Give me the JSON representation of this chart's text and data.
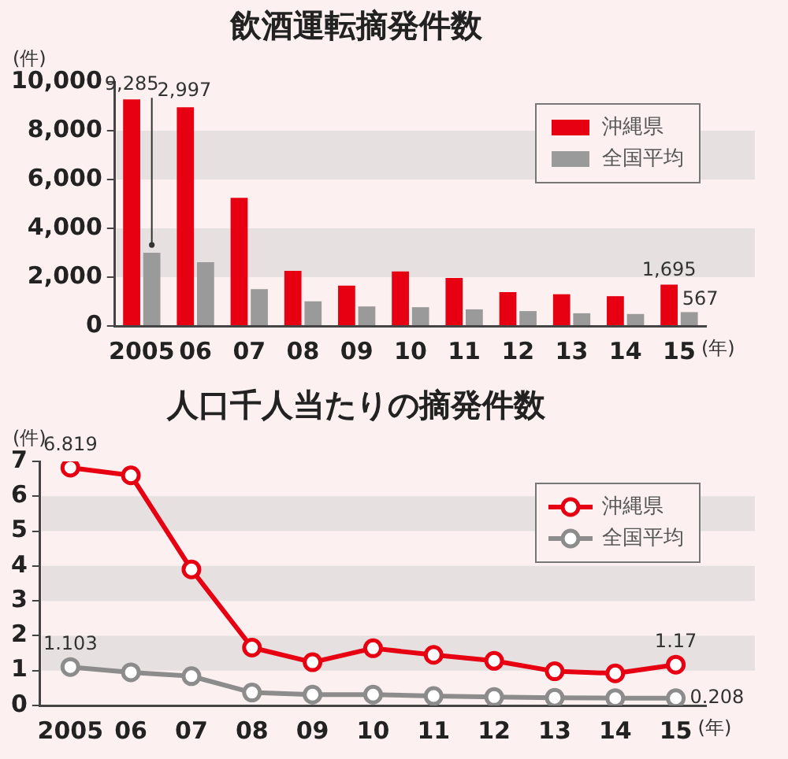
{
  "chart_data": [
    {
      "type": "bar",
      "title": "飲酒運転摘発件数",
      "xlabel": "(年)",
      "ylabel": "(件)",
      "categories": [
        "2005",
        "06",
        "07",
        "08",
        "09",
        "10",
        "11",
        "12",
        "13",
        "14",
        "15"
      ],
      "series": [
        {
          "name": "沖縄県",
          "color": "#e60012",
          "values": [
            9285,
            8960,
            5250,
            2260,
            1650,
            2230,
            1970,
            1390,
            1300,
            1220,
            1695
          ],
          "value_labels": [
            "9,285",
            null,
            null,
            null,
            null,
            null,
            null,
            null,
            null,
            null,
            "1,695"
          ]
        },
        {
          "name": "全国平均",
          "color": "#9a9a9a",
          "values": [
            2997,
            2610,
            1510,
            1010,
            800,
            770,
            680,
            610,
            520,
            490,
            567
          ],
          "value_labels": [
            "2,997",
            null,
            null,
            null,
            null,
            null,
            null,
            null,
            null,
            null,
            "567"
          ]
        }
      ],
      "ylim": [
        0,
        10000
      ],
      "yticks": [
        0,
        {
          "value": 2000,
          "label": "2,000"
        },
        {
          "value": 4000,
          "label": "4,000"
        },
        {
          "value": 6000,
          "label": "6,000"
        },
        {
          "value": 8000,
          "label": "8,000"
        },
        {
          "value": 10000,
          "label": "10,000"
        }
      ],
      "bands": [
        {
          "axis": "y",
          "from": 2000,
          "to": 4000,
          "color": "#e6e0e0"
        },
        {
          "axis": "y",
          "from": 6000,
          "to": 8000,
          "color": "#e6e0e0"
        }
      ],
      "legend": "top right"
    },
    {
      "type": "line",
      "title": "人口千人当たりの摘発件数",
      "xlabel": "(年)",
      "ylabel": "(件)",
      "categories": [
        "2005",
        "06",
        "07",
        "08",
        "09",
        "10",
        "11",
        "12",
        "13",
        "14",
        "15"
      ],
      "series": [
        {
          "name": "沖縄県",
          "color": "#e60012",
          "values": [
            6.819,
            6.6,
            3.9,
            1.66,
            1.24,
            1.64,
            1.45,
            1.28,
            0.98,
            0.92,
            1.17
          ],
          "value_labels": [
            "6.819",
            null,
            null,
            null,
            null,
            null,
            null,
            null,
            null,
            null,
            "1.17"
          ]
        },
        {
          "name": "全国平均",
          "color": "#8c8c8c",
          "values": [
            1.103,
            0.95,
            0.84,
            0.37,
            0.31,
            0.31,
            0.27,
            0.24,
            0.22,
            0.21,
            0.208
          ],
          "value_labels": [
            "1.103",
            null,
            null,
            null,
            null,
            null,
            null,
            null,
            null,
            null,
            "0.208"
          ]
        }
      ],
      "ylim": [
        0,
        7
      ],
      "yticks": [
        0,
        1,
        2,
        3,
        4,
        5,
        6,
        7
      ],
      "bands": [
        {
          "axis": "y",
          "from": 1,
          "to": 2,
          "color": "#e6e0e0"
        },
        {
          "axis": "y",
          "from": 3,
          "to": 4,
          "color": "#e6e0e0"
        },
        {
          "axis": "y",
          "from": 5,
          "to": 6,
          "color": "#e6e0e0"
        }
      ],
      "legend": "top right",
      "marker": "circle"
    }
  ]
}
